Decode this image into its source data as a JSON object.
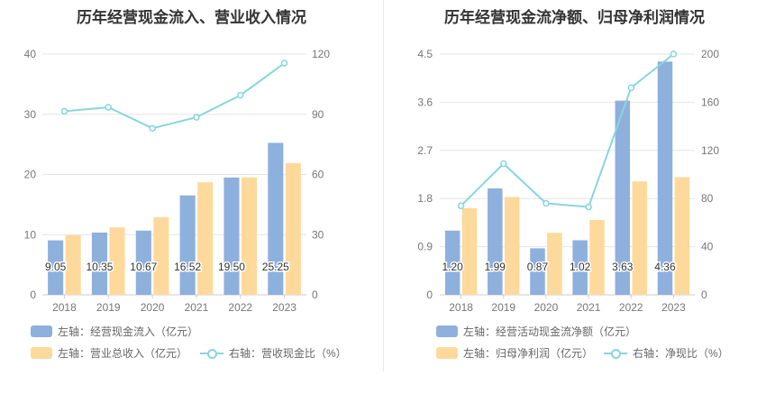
{
  "colors": {
    "bar_primary": "#8eb0dd",
    "bar_secondary": "#fed99c",
    "line": "#88d6dc",
    "grid": "#e6e6e6",
    "text": "#666666",
    "title": "#333333"
  },
  "charts": [
    {
      "title": "历年经营现金流入、营业收入情况",
      "legend": [
        {
          "label": "左轴：经营现金流入（亿元）"
        },
        {
          "label": "左轴：营业总收入（亿元）"
        },
        {
          "label": "右轴：营收现金比（%）"
        }
      ]
    },
    {
      "title": "历年经营现金流净额、归母净利润情况",
      "legend": [
        {
          "label": "左轴：经营活动现金流净额（亿元）"
        },
        {
          "label": "左轴：归母净利润（亿元）"
        },
        {
          "label": "右轴：净现比（%）"
        }
      ]
    }
  ],
  "chart_data": [
    {
      "type": "bar",
      "title": "历年经营现金流入、营业收入情况",
      "categories": [
        "2018",
        "2019",
        "2020",
        "2021",
        "2022",
        "2023"
      ],
      "y_left": {
        "lim": [
          0,
          40
        ],
        "ticks": [
          "0",
          "10",
          "20",
          "30",
          "40"
        ]
      },
      "y_right": {
        "lim": [
          0,
          120
        ],
        "ticks": [
          "0",
          "30",
          "60",
          "90",
          "120"
        ]
      },
      "series": [
        {
          "name": "左轴：经营现金流入（亿元）",
          "kind": "bar",
          "axis": "left",
          "color": "#8eb0dd",
          "values": [
            9.05,
            10.35,
            10.67,
            16.52,
            19.5,
            25.25
          ],
          "labels": [
            "9.05",
            "10.35",
            "10.67",
            "16.52",
            "19.50",
            "25.25"
          ]
        },
        {
          "name": "左轴：营业总收入（亿元）",
          "kind": "bar",
          "axis": "left",
          "color": "#fed99c",
          "values": [
            9.9,
            11.2,
            12.9,
            18.7,
            19.5,
            21.9
          ]
        },
        {
          "name": "右轴：营收现金比（%）",
          "kind": "line",
          "axis": "right",
          "color": "#88d6dc",
          "values": [
            91.5,
            93.5,
            83.0,
            88.5,
            99.5,
            115.5
          ]
        }
      ],
      "grid": true,
      "legend_position": "bottom-left"
    },
    {
      "type": "bar",
      "title": "历年经营现金流净额、归母净利润情况",
      "categories": [
        "2018",
        "2019",
        "2020",
        "2021",
        "2022",
        "2023"
      ],
      "y_left": {
        "lim": [
          0,
          4.5
        ],
        "ticks": [
          "0",
          "0.9",
          "1.8",
          "2.7",
          "3.6",
          "4.5"
        ]
      },
      "y_right": {
        "lim": [
          0,
          200
        ],
        "ticks": [
          "0",
          "40",
          "80",
          "120",
          "160",
          "200"
        ]
      },
      "series": [
        {
          "name": "左轴：经营活动现金流净额（亿元）",
          "kind": "bar",
          "axis": "left",
          "color": "#8eb0dd",
          "values": [
            1.2,
            1.99,
            0.87,
            1.02,
            3.63,
            4.36
          ],
          "labels": [
            "1.20",
            "1.99",
            "0.87",
            "1.02",
            "3.63",
            "4.36"
          ]
        },
        {
          "name": "左轴：归母净利润（亿元）",
          "kind": "bar",
          "axis": "left",
          "color": "#fed99c",
          "values": [
            1.62,
            1.83,
            1.16,
            1.4,
            2.12,
            2.2
          ]
        },
        {
          "name": "右轴：净现比（%）",
          "kind": "line",
          "axis": "right",
          "color": "#88d6dc",
          "values": [
            74,
            109,
            76,
            73,
            172,
            200
          ]
        }
      ],
      "grid": true,
      "legend_position": "bottom-left"
    }
  ]
}
